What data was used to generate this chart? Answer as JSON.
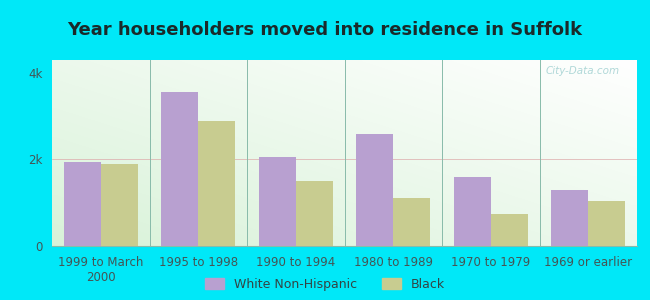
{
  "title": "Year householders moved into residence in Suffolk",
  "categories": [
    "1999 to March\n2000",
    "1995 to 1998",
    "1990 to 1994",
    "1980 to 1989",
    "1970 to 1979",
    "1969 or earlier"
  ],
  "white_values": [
    1950,
    3550,
    2050,
    2600,
    1600,
    1300
  ],
  "black_values": [
    1900,
    2900,
    1500,
    1100,
    750,
    1050
  ],
  "white_color": "#b8a0d0",
  "black_color": "#c8cc90",
  "background_outer": "#00e8f8",
  "ylim": [
    0,
    4300
  ],
  "ytick_labels": [
    "0",
    "2k",
    "4k"
  ],
  "ytick_vals": [
    0,
    2000,
    4000
  ],
  "bar_width": 0.38,
  "legend_white": "White Non-Hispanic",
  "legend_black": "Black",
  "title_fontsize": 13,
  "tick_fontsize": 8.5,
  "legend_fontsize": 9,
  "separator_color": "#88ccaa",
  "watermark_color": "#b0d8d8"
}
